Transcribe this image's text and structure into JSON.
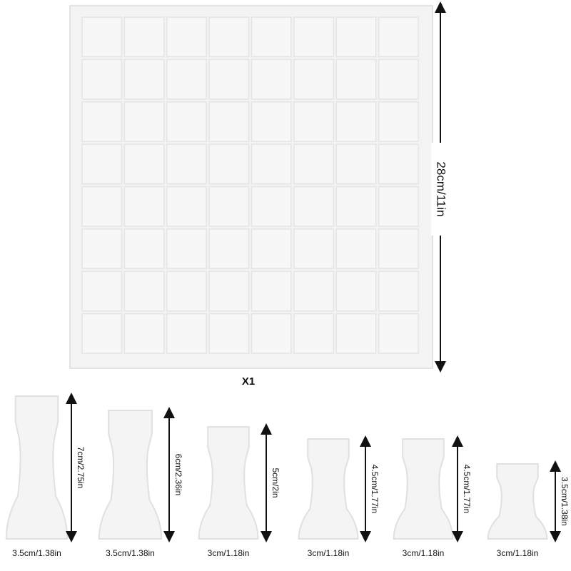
{
  "board": {
    "size_label": "28cm/11in",
    "quantity": "X1"
  },
  "pieces": [
    {
      "height": "7cm/2.75in",
      "width": "3.5cm/1.38in"
    },
    {
      "height": "6cm/2.36in",
      "width": "3.5cm/1.38in"
    },
    {
      "height": "5cm/2in",
      "width": "3cm/1.18in"
    },
    {
      "height": "4.5cm/1.77in",
      "width": "3cm/1.18in"
    },
    {
      "height": "4.5cm/1.77in",
      "width": "3cm/1.18in"
    },
    {
      "height": "3.5cm/1.38in",
      "width": "3cm/1.18in"
    }
  ]
}
